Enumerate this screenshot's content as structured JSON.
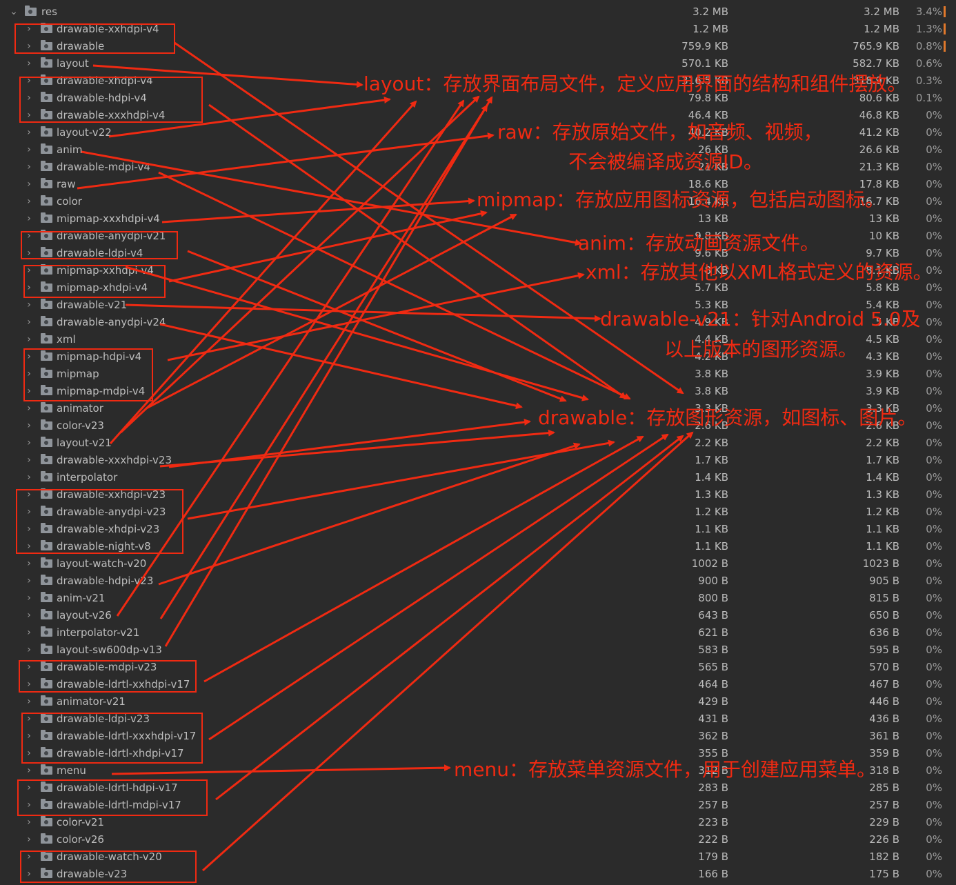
{
  "rows": [
    {
      "name": "res",
      "size1": "3.2 MB",
      "size2": "3.2 MB",
      "pct": "3.4%",
      "root": true,
      "bar": true
    },
    {
      "name": "drawable-xxhdpi-v4",
      "size1": "1.2 MB",
      "size2": "1.2 MB",
      "pct": "1.3%",
      "bar": true
    },
    {
      "name": "drawable",
      "size1": "759.9 KB",
      "size2": "765.9 KB",
      "pct": "0.8%",
      "bar": true
    },
    {
      "name": "layout",
      "size1": "570.1 KB",
      "size2": "582.7 KB",
      "pct": "0.6%"
    },
    {
      "name": "drawable-xhdpi-v4",
      "size1": "316.5 KB",
      "size2": "318.9 KB",
      "pct": "0.3%"
    },
    {
      "name": "drawable-hdpi-v4",
      "size1": "79.8 KB",
      "size2": "80.6 KB",
      "pct": "0.1%"
    },
    {
      "name": "drawable-xxxhdpi-v4",
      "size1": "46.4 KB",
      "size2": "46.8 KB",
      "pct": "0%"
    },
    {
      "name": "layout-v22",
      "size1": "40.2 KB",
      "size2": "41.2 KB",
      "pct": "0%"
    },
    {
      "name": "anim",
      "size1": "26 KB",
      "size2": "26.6 KB",
      "pct": "0%"
    },
    {
      "name": "drawable-mdpi-v4",
      "size1": "21 KB",
      "size2": "21.3 KB",
      "pct": "0%"
    },
    {
      "name": "raw",
      "size1": "18.6 KB",
      "size2": "17.8 KB",
      "pct": "0%"
    },
    {
      "name": "color",
      "size1": "16.4 KB",
      "size2": "16.7 KB",
      "pct": "0%"
    },
    {
      "name": "mipmap-xxxhdpi-v4",
      "size1": "13 KB",
      "size2": "13 KB",
      "pct": "0%"
    },
    {
      "name": "drawable-anydpi-v21",
      "size1": "9.8 KB",
      "size2": "10 KB",
      "pct": "0%"
    },
    {
      "name": "drawable-ldpi-v4",
      "size1": "9.6 KB",
      "size2": "9.7 KB",
      "pct": "0%"
    },
    {
      "name": "mipmap-xxhdpi-v4",
      "size1": "8 KB",
      "size2": "8.1 KB",
      "pct": "0%"
    },
    {
      "name": "mipmap-xhdpi-v4",
      "size1": "5.7 KB",
      "size2": "5.8 KB",
      "pct": "0%"
    },
    {
      "name": "drawable-v21",
      "size1": "5.3 KB",
      "size2": "5.4 KB",
      "pct": "0%"
    },
    {
      "name": "drawable-anydpi-v24",
      "size1": "4.9 KB",
      "size2": "5 KB",
      "pct": "0%"
    },
    {
      "name": "xml",
      "size1": "4.4 KB",
      "size2": "4.5 KB",
      "pct": "0%"
    },
    {
      "name": "mipmap-hdpi-v4",
      "size1": "4.2 KB",
      "size2": "4.3 KB",
      "pct": "0%"
    },
    {
      "name": "mipmap",
      "size1": "3.8 KB",
      "size2": "3.9 KB",
      "pct": "0%"
    },
    {
      "name": "mipmap-mdpi-v4",
      "size1": "3.8 KB",
      "size2": "3.9 KB",
      "pct": "0%"
    },
    {
      "name": "animator",
      "size1": "3.3 KB",
      "size2": "3.3 KB",
      "pct": "0%"
    },
    {
      "name": "color-v23",
      "size1": "2.6 KB",
      "size2": "2.6 KB",
      "pct": "0%"
    },
    {
      "name": "layout-v21",
      "size1": "2.2 KB",
      "size2": "2.2 KB",
      "pct": "0%"
    },
    {
      "name": "drawable-xxxhdpi-v23",
      "size1": "1.7 KB",
      "size2": "1.7 KB",
      "pct": "0%"
    },
    {
      "name": "interpolator",
      "size1": "1.4 KB",
      "size2": "1.4 KB",
      "pct": "0%"
    },
    {
      "name": "drawable-xxhdpi-v23",
      "size1": "1.3 KB",
      "size2": "1.3 KB",
      "pct": "0%"
    },
    {
      "name": "drawable-anydpi-v23",
      "size1": "1.2 KB",
      "size2": "1.2 KB",
      "pct": "0%"
    },
    {
      "name": "drawable-xhdpi-v23",
      "size1": "1.1 KB",
      "size2": "1.1 KB",
      "pct": "0%"
    },
    {
      "name": "drawable-night-v8",
      "size1": "1.1 KB",
      "size2": "1.1 KB",
      "pct": "0%"
    },
    {
      "name": "layout-watch-v20",
      "size1": "1002 B",
      "size2": "1023 B",
      "pct": "0%"
    },
    {
      "name": "drawable-hdpi-v23",
      "size1": "900 B",
      "size2": "905 B",
      "pct": "0%"
    },
    {
      "name": "anim-v21",
      "size1": "800 B",
      "size2": "815 B",
      "pct": "0%"
    },
    {
      "name": "layout-v26",
      "size1": "643 B",
      "size2": "650 B",
      "pct": "0%"
    },
    {
      "name": "interpolator-v21",
      "size1": "621 B",
      "size2": "636 B",
      "pct": "0%"
    },
    {
      "name": "layout-sw600dp-v13",
      "size1": "583 B",
      "size2": "595 B",
      "pct": "0%"
    },
    {
      "name": "drawable-mdpi-v23",
      "size1": "565 B",
      "size2": "570 B",
      "pct": "0%"
    },
    {
      "name": "drawable-ldrtl-xxhdpi-v17",
      "size1": "464 B",
      "size2": "467 B",
      "pct": "0%"
    },
    {
      "name": "animator-v21",
      "size1": "429 B",
      "size2": "446 B",
      "pct": "0%"
    },
    {
      "name": "drawable-ldpi-v23",
      "size1": "431 B",
      "size2": "436 B",
      "pct": "0%"
    },
    {
      "name": "drawable-ldrtl-xxxhdpi-v17",
      "size1": "362 B",
      "size2": "361 B",
      "pct": "0%"
    },
    {
      "name": "drawable-ldrtl-xhdpi-v17",
      "size1": "355 B",
      "size2": "359 B",
      "pct": "0%"
    },
    {
      "name": "menu",
      "size1": "312 B",
      "size2": "318 B",
      "pct": "0%"
    },
    {
      "name": "drawable-ldrtl-hdpi-v17",
      "size1": "283 B",
      "size2": "285 B",
      "pct": "0%"
    },
    {
      "name": "drawable-ldrtl-mdpi-v17",
      "size1": "257 B",
      "size2": "257 B",
      "pct": "0%"
    },
    {
      "name": "color-v21",
      "size1": "223 B",
      "size2": "229 B",
      "pct": "0%"
    },
    {
      "name": "color-v26",
      "size1": "222 B",
      "size2": "226 B",
      "pct": "0%"
    },
    {
      "name": "drawable-watch-v20",
      "size1": "179 B",
      "size2": "182 B",
      "pct": "0%"
    },
    {
      "name": "drawable-v23",
      "size1": "166 B",
      "size2": "175 B",
      "pct": "0%"
    }
  ],
  "annotations": [
    {
      "text": "layout：存放界面布局文件，定义应用界面的结构和组件摆放。"
    },
    {
      "text": "raw：存放原始文件，如音频、视频，"
    },
    {
      "text": "不会被编译成资源ID。"
    },
    {
      "text": "mipmap：存放应用图标资源，包括启动图标。"
    },
    {
      "text": "anim：存放动画资源文件。"
    },
    {
      "text": "xml：存放其他以XML格式定义的资源。"
    },
    {
      "text": "drawable-v21：针对Android 5.0及"
    },
    {
      "text": "以上版本的图形资源。"
    },
    {
      "text": "drawable：存放图形资源，如图标、图片。"
    },
    {
      "text": "menu：存放菜单资源文件，用于创建应用菜单。"
    }
  ],
  "colors": {
    "background": "#2b2b2b",
    "text": "#bbbbbb",
    "annotation": "#f02a12",
    "usage_bar": "#e0782b"
  }
}
